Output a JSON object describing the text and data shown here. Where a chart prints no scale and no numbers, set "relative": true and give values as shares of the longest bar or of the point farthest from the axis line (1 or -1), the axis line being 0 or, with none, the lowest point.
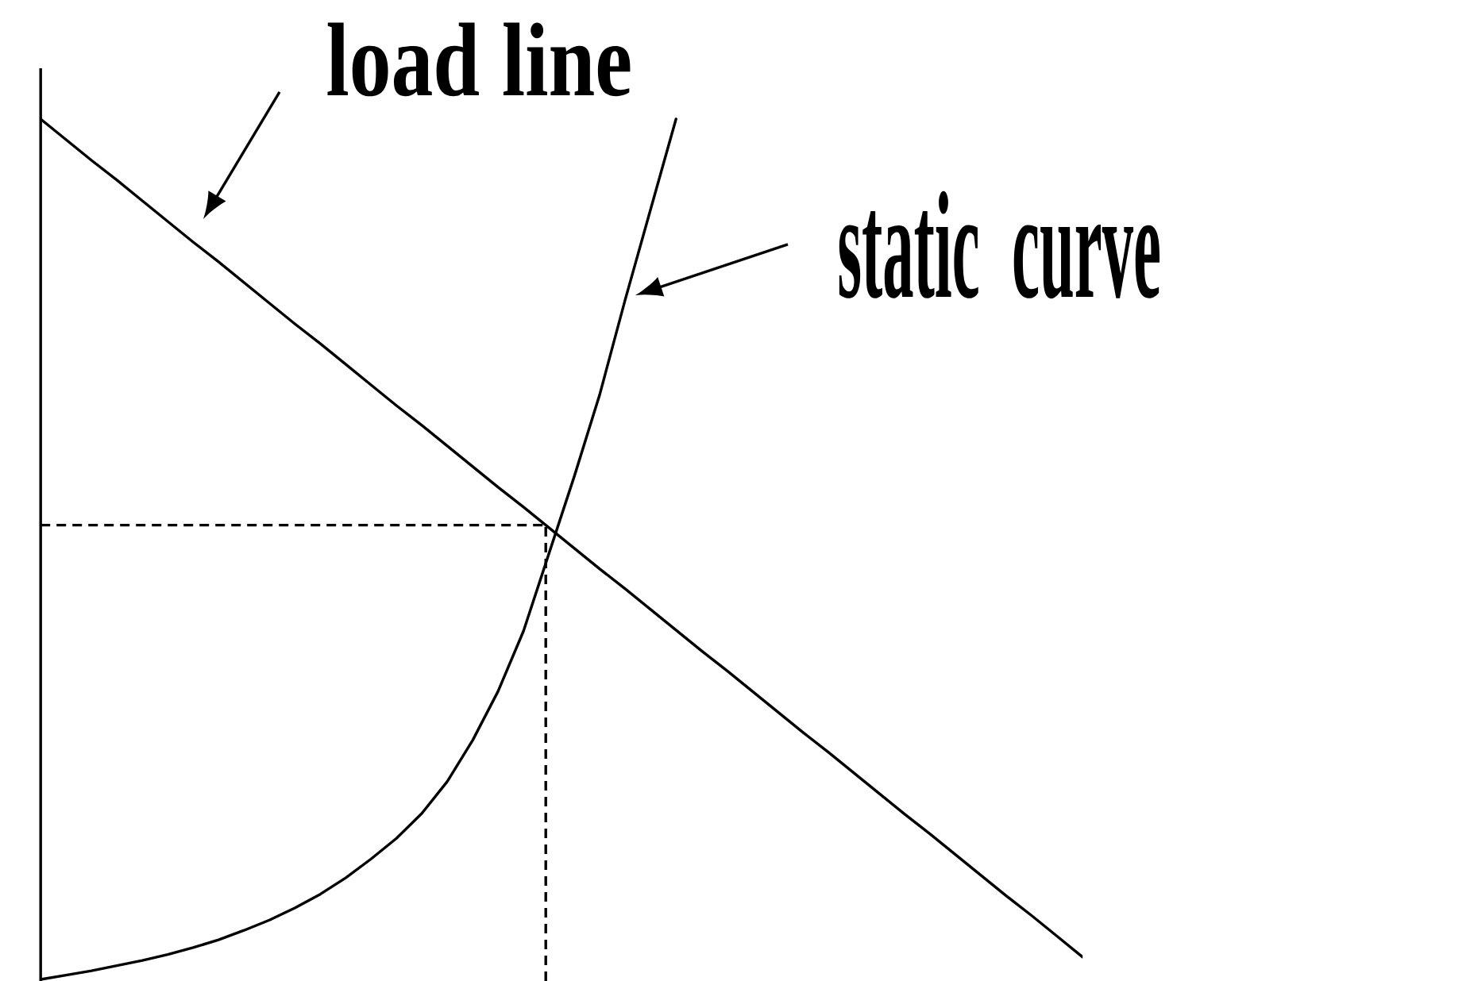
{
  "chart_data": {
    "type": "line",
    "relative": true,
    "categories": [
      null,
      null,
      null,
      null,
      null,
      null,
      null,
      null,
      null,
      null,
      null,
      null,
      null,
      null,
      null,
      null,
      null,
      null,
      null,
      null,
      null,
      null,
      null,
      null,
      null,
      null,
      null,
      null,
      null,
      null,
      null,
      null,
      null,
      null,
      null,
      null,
      null,
      null,
      null,
      null,
      null,
      null
    ],
    "series": [
      {
        "name": "load line",
        "color": "#000000",
        "values": [
          1.0,
          0.976,
          0.952,
          0.929,
          0.905,
          0.881,
          0.857,
          0.834,
          0.81,
          0.786,
          0.762,
          0.739,
          0.715,
          0.691,
          0.667,
          0.644,
          0.62,
          0.596,
          0.572,
          0.549,
          0.525,
          0.501,
          0.477,
          0.454,
          0.43,
          0.406,
          0.382,
          0.359,
          0.335,
          0.311,
          0.287,
          0.264,
          0.24,
          0.216,
          0.192,
          0.169,
          0.145,
          0.121,
          0.097,
          0.074,
          0.05,
          0.026
        ]
      },
      {
        "name": "static curve",
        "color": "#000000",
        "values": [
          0.0,
          0.005,
          0.01,
          0.016,
          0.022,
          0.029,
          0.037,
          0.046,
          0.057,
          0.069,
          0.083,
          0.099,
          0.118,
          0.14,
          0.164,
          0.193,
          0.23,
          0.278,
          0.335,
          0.405,
          0.495,
          0.585,
          0.68,
          0.79,
          0.895,
          1.0,
          null,
          null,
          null,
          null,
          null,
          null,
          null,
          null,
          null,
          null,
          null,
          null,
          null,
          null,
          null,
          null
        ]
      }
    ],
    "ref_lines": [
      {
        "axis": "y",
        "value": 0.528,
        "color": "#000000",
        "line_style": "dashed"
      }
    ]
  }
}
